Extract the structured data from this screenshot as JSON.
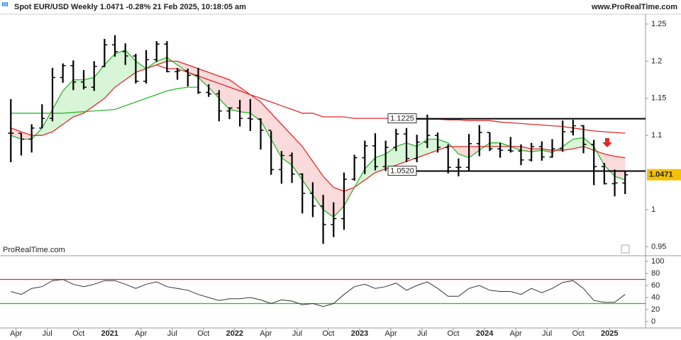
{
  "chart_data": {
    "type": "ohlc",
    "title": "Spot EUR/USD Weekly 1.0471 -0.28% 21 Feb 2025, 10:18:05 am",
    "source": "www.ProRealTime.com",
    "watermark": "ProRealTime.com",
    "x": [
      "2020-03",
      "2020-04",
      "2020-05",
      "2020-06",
      "2020-07",
      "2020-08",
      "2020-09",
      "2020-10",
      "2020-11",
      "2020-12",
      "2021-01",
      "2021-02",
      "2021-03",
      "2021-04",
      "2021-05",
      "2021-06",
      "2021-07",
      "2021-08",
      "2021-09",
      "2021-10",
      "2021-11",
      "2021-12",
      "2022-01",
      "2022-02",
      "2022-03",
      "2022-04",
      "2022-05",
      "2022-06",
      "2022-07",
      "2022-08",
      "2022-09",
      "2022-10",
      "2022-11",
      "2022-12",
      "2023-01",
      "2023-02",
      "2023-03",
      "2023-04",
      "2023-05",
      "2023-06",
      "2023-07",
      "2023-08",
      "2023-09",
      "2023-10",
      "2023-11",
      "2023-12",
      "2024-01",
      "2024-02",
      "2024-03",
      "2024-04",
      "2024-05",
      "2024-06",
      "2024-07",
      "2024-08",
      "2024-09",
      "2024-10",
      "2024-11",
      "2024-12",
      "2025-01",
      "2025-02"
    ],
    "open": [
      1.103,
      1.103,
      1.095,
      1.11,
      1.123,
      1.178,
      1.194,
      1.172,
      1.165,
      1.193,
      1.222,
      1.213,
      1.207,
      1.173,
      1.202,
      1.223,
      1.186,
      1.187,
      1.181,
      1.158,
      1.156,
      1.133,
      1.137,
      1.123,
      1.122,
      1.107,
      1.054,
      1.073,
      1.048,
      1.022,
      1.005,
      0.98,
      0.988,
      1.041,
      1.07,
      1.086,
      1.058,
      1.084,
      1.102,
      1.069,
      1.091,
      1.1,
      1.084,
      1.057,
      1.057,
      1.089,
      1.104,
      1.082,
      1.08,
      1.079,
      1.067,
      1.085,
      1.071,
      1.082,
      1.105,
      1.113,
      1.088,
      1.058,
      1.035,
      1.036
    ],
    "high": [
      1.149,
      1.103,
      1.115,
      1.142,
      1.191,
      1.197,
      1.201,
      1.188,
      1.2,
      1.23,
      1.235,
      1.224,
      1.21,
      1.215,
      1.227,
      1.227,
      1.191,
      1.19,
      1.191,
      1.169,
      1.161,
      1.138,
      1.148,
      1.149,
      1.123,
      1.106,
      1.079,
      1.077,
      1.049,
      1.037,
      1.02,
      1.01,
      1.05,
      1.074,
      1.093,
      1.103,
      1.093,
      1.109,
      1.11,
      1.101,
      1.128,
      1.104,
      1.088,
      1.069,
      1.102,
      1.114,
      1.104,
      1.09,
      1.098,
      1.088,
      1.09,
      1.092,
      1.095,
      1.12,
      1.121,
      1.114,
      1.094,
      1.063,
      1.054,
      1.053
    ],
    "low": [
      1.064,
      1.073,
      1.077,
      1.11,
      1.119,
      1.171,
      1.161,
      1.162,
      1.16,
      1.192,
      1.206,
      1.195,
      1.17,
      1.17,
      1.199,
      1.185,
      1.175,
      1.166,
      1.156,
      1.152,
      1.119,
      1.122,
      1.112,
      1.106,
      1.081,
      1.047,
      1.035,
      1.036,
      0.995,
      0.99,
      0.954,
      0.963,
      0.973,
      1.039,
      1.048,
      1.053,
      1.052,
      1.079,
      1.064,
      1.064,
      1.083,
      1.077,
      1.049,
      1.045,
      1.052,
      1.072,
      1.079,
      1.07,
      1.077,
      1.06,
      1.065,
      1.066,
      1.07,
      1.078,
      1.1,
      1.076,
      1.033,
      1.034,
      1.018,
      1.021
    ],
    "close": [
      1.103,
      1.095,
      1.11,
      1.123,
      1.178,
      1.194,
      1.172,
      1.165,
      1.193,
      1.222,
      1.213,
      1.207,
      1.173,
      1.202,
      1.223,
      1.186,
      1.187,
      1.181,
      1.158,
      1.156,
      1.133,
      1.137,
      1.123,
      1.122,
      1.107,
      1.054,
      1.073,
      1.048,
      1.022,
      1.005,
      0.98,
      0.988,
      1.041,
      1.07,
      1.086,
      1.058,
      1.084,
      1.102,
      1.069,
      1.091,
      1.1,
      1.084,
      1.057,
      1.057,
      1.089,
      1.104,
      1.082,
      1.08,
      1.079,
      1.067,
      1.085,
      1.071,
      1.082,
      1.105,
      1.113,
      1.088,
      1.058,
      1.035,
      1.036,
      1.047
    ],
    "color": "#000000",
    "series": [
      {
        "color": "#2eb82e",
        "values": [
          1.1,
          1.095,
          1.095,
          1.11,
          1.135,
          1.16,
          1.175,
          1.175,
          1.178,
          1.195,
          1.21,
          1.215,
          1.2,
          1.19,
          1.2,
          1.205,
          1.195,
          1.185,
          1.178,
          1.165,
          1.15,
          1.135,
          1.132,
          1.13,
          1.12,
          1.095,
          1.07,
          1.06,
          1.04,
          1.02,
          1.0,
          0.99,
          1.005,
          1.03,
          1.055,
          1.07,
          1.075,
          1.085,
          1.09,
          1.085,
          1.095,
          1.095,
          1.09,
          1.075,
          1.07,
          1.08,
          1.09,
          1.09,
          1.085,
          1.08,
          1.078,
          1.08,
          1.077,
          1.085,
          1.095,
          1.097,
          1.085,
          1.06,
          1.045,
          1.04
        ]
      },
      {
        "color": "#e02a2a",
        "values": [
          1.11,
          1.105,
          1.1,
          1.1,
          1.105,
          1.115,
          1.125,
          1.13,
          1.14,
          1.15,
          1.165,
          1.175,
          1.185,
          1.19,
          1.195,
          1.2,
          1.2,
          1.195,
          1.19,
          1.185,
          1.18,
          1.175,
          1.165,
          1.155,
          1.145,
          1.13,
          1.115,
          1.1,
          1.085,
          1.065,
          1.045,
          1.03,
          1.025,
          1.03,
          1.04,
          1.05,
          1.055,
          1.06,
          1.065,
          1.07,
          1.075,
          1.08,
          1.085,
          1.085,
          1.085,
          1.085,
          1.085,
          1.085,
          1.085,
          1.085,
          1.082,
          1.082,
          1.08,
          1.08,
          1.082,
          1.085,
          1.08,
          1.075,
          1.072,
          1.07
        ]
      },
      {
        "color": "#e02a2a",
        "values": [
          null,
          null,
          null,
          null,
          null,
          null,
          null,
          null,
          null,
          null,
          null,
          null,
          null,
          null,
          1.195,
          1.19,
          1.19,
          1.185,
          1.18,
          1.175,
          1.17,
          1.165,
          1.16,
          1.155,
          1.15,
          1.145,
          1.14,
          1.135,
          1.13,
          1.13,
          1.125,
          1.125,
          1.125,
          1.123,
          1.123,
          1.123,
          1.123,
          1.123,
          1.123,
          1.122,
          1.122,
          1.122,
          1.121,
          1.121,
          1.12,
          1.12,
          1.12,
          1.118,
          1.117,
          1.116,
          1.115,
          1.114,
          1.113,
          1.112,
          1.11,
          1.108,
          1.106,
          1.105,
          1.104,
          1.103
        ]
      },
      {
        "color": "#2eb82e",
        "values": [
          1.13,
          1.13,
          1.13,
          1.13,
          1.13,
          1.13,
          1.131,
          1.132,
          1.133,
          1.134,
          1.135,
          1.14,
          1.145,
          1.15,
          1.155,
          1.16,
          1.163,
          1.165,
          1.165,
          null,
          null,
          null,
          null,
          null,
          null,
          null,
          null,
          null,
          null,
          null,
          null,
          null,
          null,
          null,
          null,
          null,
          null,
          null,
          null,
          null,
          null,
          null,
          null,
          null,
          null,
          null,
          null,
          null,
          null,
          null,
          null,
          null,
          null,
          null,
          null,
          null,
          null,
          null,
          null,
          null
        ]
      }
    ],
    "fill_colors": [
      "#d8f5d8",
      "#fadada"
    ],
    "xlim": [
      "2020-02-15",
      "2025-04-15"
    ],
    "xticks": [
      {
        "value": "2020-04",
        "label": "Apr"
      },
      {
        "value": "2020-07",
        "label": "Jul"
      },
      {
        "value": "2020-10",
        "label": "Oct"
      },
      {
        "value": "2021-01",
        "label": "2021"
      },
      {
        "value": "2021-04",
        "label": "Apr"
      },
      {
        "value": "2021-07",
        "label": "Jul"
      },
      {
        "value": "2021-10",
        "label": "Oct"
      },
      {
        "value": "2022-01",
        "label": "2022"
      },
      {
        "value": "2022-04",
        "label": "Apr"
      },
      {
        "value": "2022-07",
        "label": "Jul"
      },
      {
        "value": "2022-10",
        "label": "Oct"
      },
      {
        "value": "2023-01",
        "label": "2023"
      },
      {
        "value": "2023-04",
        "label": "Apr"
      },
      {
        "value": "2023-07",
        "label": "Jul"
      },
      {
        "value": "2023-10",
        "label": "Oct"
      },
      {
        "value": "2024-01",
        "label": "2024"
      },
      {
        "value": "2024-04",
        "label": "Apr"
      },
      {
        "value": "2024-07",
        "label": "Jul"
      },
      {
        "value": "2024-10",
        "label": "Oct"
      },
      {
        "value": "2025-01",
        "label": "2025"
      }
    ],
    "ylim": [
      0.939,
      1.27
    ],
    "yticks": [
      0.95,
      1,
      1.1,
      1.15,
      1.2,
      1.25
    ],
    "hlines": [
      1.1225,
      {
        "value": 1.052,
        "label": "1.0520"
      }
    ],
    "hline_from": "2023-04",
    "last_price": 1.0471,
    "last_price_color": "#f2c200",
    "rsi": {
      "type": "line",
      "color": "#333333",
      "values": [
        50,
        45,
        55,
        58,
        68,
        70,
        62,
        58,
        62,
        68,
        68,
        62,
        55,
        62,
        66,
        58,
        55,
        52,
        45,
        40,
        35,
        38,
        38,
        40,
        36,
        30,
        36,
        34,
        28,
        30,
        25,
        30,
        45,
        58,
        62,
        55,
        58,
        64,
        52,
        60,
        66,
        55,
        42,
        42,
        55,
        60,
        52,
        50,
        50,
        45,
        55,
        48,
        55,
        65,
        68,
        55,
        35,
        32,
        32,
        45
      ],
      "ylim": [
        -9.4,
        108.2
      ],
      "yticks": [
        0,
        20,
        40,
        60,
        80,
        100
      ],
      "levels": [
        {
          "value": 70,
          "color": "#e02a2a"
        },
        {
          "value": 30,
          "color": "#2eb82e"
        }
      ]
    }
  }
}
